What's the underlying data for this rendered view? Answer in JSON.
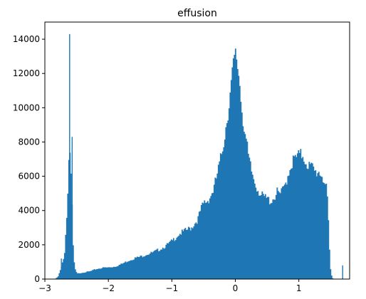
{
  "chart_data": {
    "type": "bar",
    "title": "effusion",
    "xlabel": "",
    "ylabel": "",
    "xlim": [
      -3.0,
      1.8
    ],
    "ylim": [
      0,
      15000
    ],
    "xticks": [
      -3,
      -2,
      -1,
      0,
      1
    ],
    "xtick_labels": [
      "−3",
      "−2",
      "−1",
      "0",
      "1"
    ],
    "yticks": [
      0,
      2000,
      4000,
      6000,
      8000,
      10000,
      12000,
      14000
    ],
    "ytick_labels": [
      "0",
      "2000",
      "4000",
      "6000",
      "8000",
      "10000",
      "12000",
      "14000"
    ],
    "grid": false,
    "color": "#1f77b4",
    "curve_points": [
      [
        -2.85,
        0
      ],
      [
        -2.8,
        150
      ],
      [
        -2.75,
        700
      ],
      [
        -2.7,
        1500
      ],
      [
        -2.66,
        4000
      ],
      [
        -2.64,
        6300
      ],
      [
        -2.62,
        8200
      ],
      [
        -2.6,
        6500
      ],
      [
        -2.58,
        4200
      ],
      [
        -2.56,
        1500
      ],
      [
        -2.54,
        700
      ],
      [
        -2.52,
        450
      ],
      [
        -2.5,
        330
      ],
      [
        -2.4,
        400
      ],
      [
        -2.3,
        460
      ],
      [
        -2.2,
        600
      ],
      [
        -2.1,
        680
      ],
      [
        -2.0,
        700
      ],
      [
        -1.9,
        760
      ],
      [
        -1.8,
        900
      ],
      [
        -1.7,
        1100
      ],
      [
        -1.6,
        1250
      ],
      [
        -1.5,
        1350
      ],
      [
        -1.4,
        1500
      ],
      [
        -1.3,
        1600
      ],
      [
        -1.2,
        1800
      ],
      [
        -1.1,
        2000
      ],
      [
        -1.0,
        2300
      ],
      [
        -0.9,
        2700
      ],
      [
        -0.8,
        2900
      ],
      [
        -0.7,
        3100
      ],
      [
        -0.6,
        3600
      ],
      [
        -0.55,
        4200
      ],
      [
        -0.5,
        4600
      ],
      [
        -0.45,
        4700
      ],
      [
        -0.4,
        5000
      ],
      [
        -0.35,
        5400
      ],
      [
        -0.3,
        6200
      ],
      [
        -0.25,
        7000
      ],
      [
        -0.2,
        8100
      ],
      [
        -0.15,
        9400
      ],
      [
        -0.1,
        10800
      ],
      [
        -0.06,
        12100
      ],
      [
        -0.03,
        13000
      ],
      [
        0.0,
        13400
      ],
      [
        0.03,
        12800
      ],
      [
        0.06,
        11800
      ],
      [
        0.1,
        10000
      ],
      [
        0.15,
        8600
      ],
      [
        0.2,
        7200
      ],
      [
        0.25,
        6400
      ],
      [
        0.3,
        5800
      ],
      [
        0.35,
        5400
      ],
      [
        0.4,
        5000
      ],
      [
        0.45,
        4900
      ],
      [
        0.5,
        4800
      ],
      [
        0.55,
        4700
      ],
      [
        0.6,
        4900
      ],
      [
        0.65,
        5200
      ],
      [
        0.7,
        5100
      ],
      [
        0.75,
        5400
      ],
      [
        0.8,
        6000
      ],
      [
        0.85,
        6700
      ],
      [
        0.9,
        7100
      ],
      [
        0.95,
        7300
      ],
      [
        1.0,
        7400
      ],
      [
        1.05,
        7500
      ],
      [
        1.1,
        7100
      ],
      [
        1.15,
        6800
      ],
      [
        1.2,
        6700
      ],
      [
        1.25,
        6400
      ],
      [
        1.3,
        6500
      ],
      [
        1.35,
        6300
      ],
      [
        1.4,
        5800
      ],
      [
        1.43,
        5300
      ],
      [
        1.45,
        4100
      ],
      [
        1.47,
        2000
      ],
      [
        1.49,
        600
      ],
      [
        1.51,
        150
      ],
      [
        1.53,
        0
      ]
    ],
    "spikes": [
      {
        "x": -2.74,
        "y": 1200
      },
      {
        "x": -2.61,
        "y": 14300
      },
      {
        "x": -2.57,
        "y": 8300
      },
      {
        "x": 1.69,
        "y": 800
      }
    ]
  }
}
